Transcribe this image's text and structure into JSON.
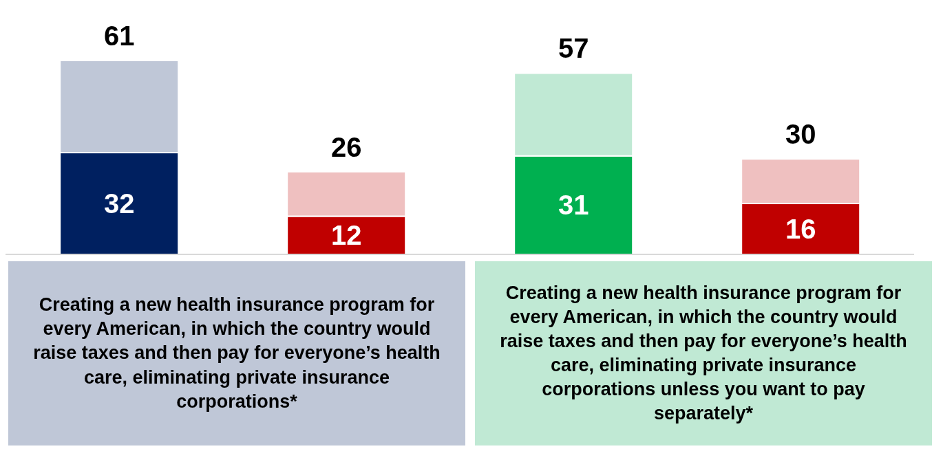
{
  "chart_data": {
    "type": "bar",
    "stacked": true,
    "categories": [
      null,
      null,
      null,
      null
    ],
    "series": [
      {
        "values": [
          32,
          12,
          31,
          16
        ],
        "colors": [
          "#002060",
          "#c00000",
          "#00b050",
          "#c00000"
        ],
        "value_labels": [
          "32",
          "12",
          "31",
          "16"
        ]
      },
      {
        "values": [
          29,
          14,
          26,
          14
        ],
        "colors": [
          "#bfc7d7",
          "#efc0c0",
          "#c0e9d4",
          "#efc0c0"
        ]
      }
    ],
    "totals": [
      "61",
      "26",
      "57",
      "30"
    ],
    "annotations": [
      "Creating a new health insurance program for every American, in which the country would raise taxes and then pay for everyone’s health care, eliminating private insurance corporations*",
      "Creating a new health insurance program for every American, in which the country would raise taxes and then pay for everyone’s health care, eliminating private insurance corporations unless you want to pay separately*"
    ]
  }
}
